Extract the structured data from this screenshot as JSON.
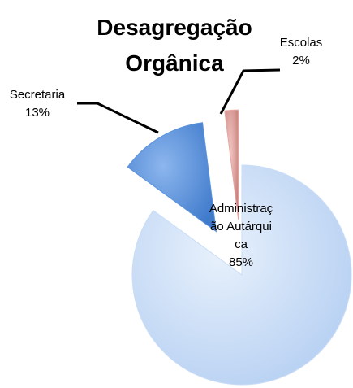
{
  "chart_data": {
    "type": "pie",
    "title": "Desagregação Orgânica",
    "categories": [
      "Administração Autárquica",
      "Secretaria",
      "Escolas"
    ],
    "values": [
      85,
      13,
      2
    ],
    "value_labels": [
      "85%",
      "13%",
      "2%"
    ],
    "colors": [
      "#c9ddf7",
      "#5c93dc",
      "#e6a7a3"
    ]
  }
}
